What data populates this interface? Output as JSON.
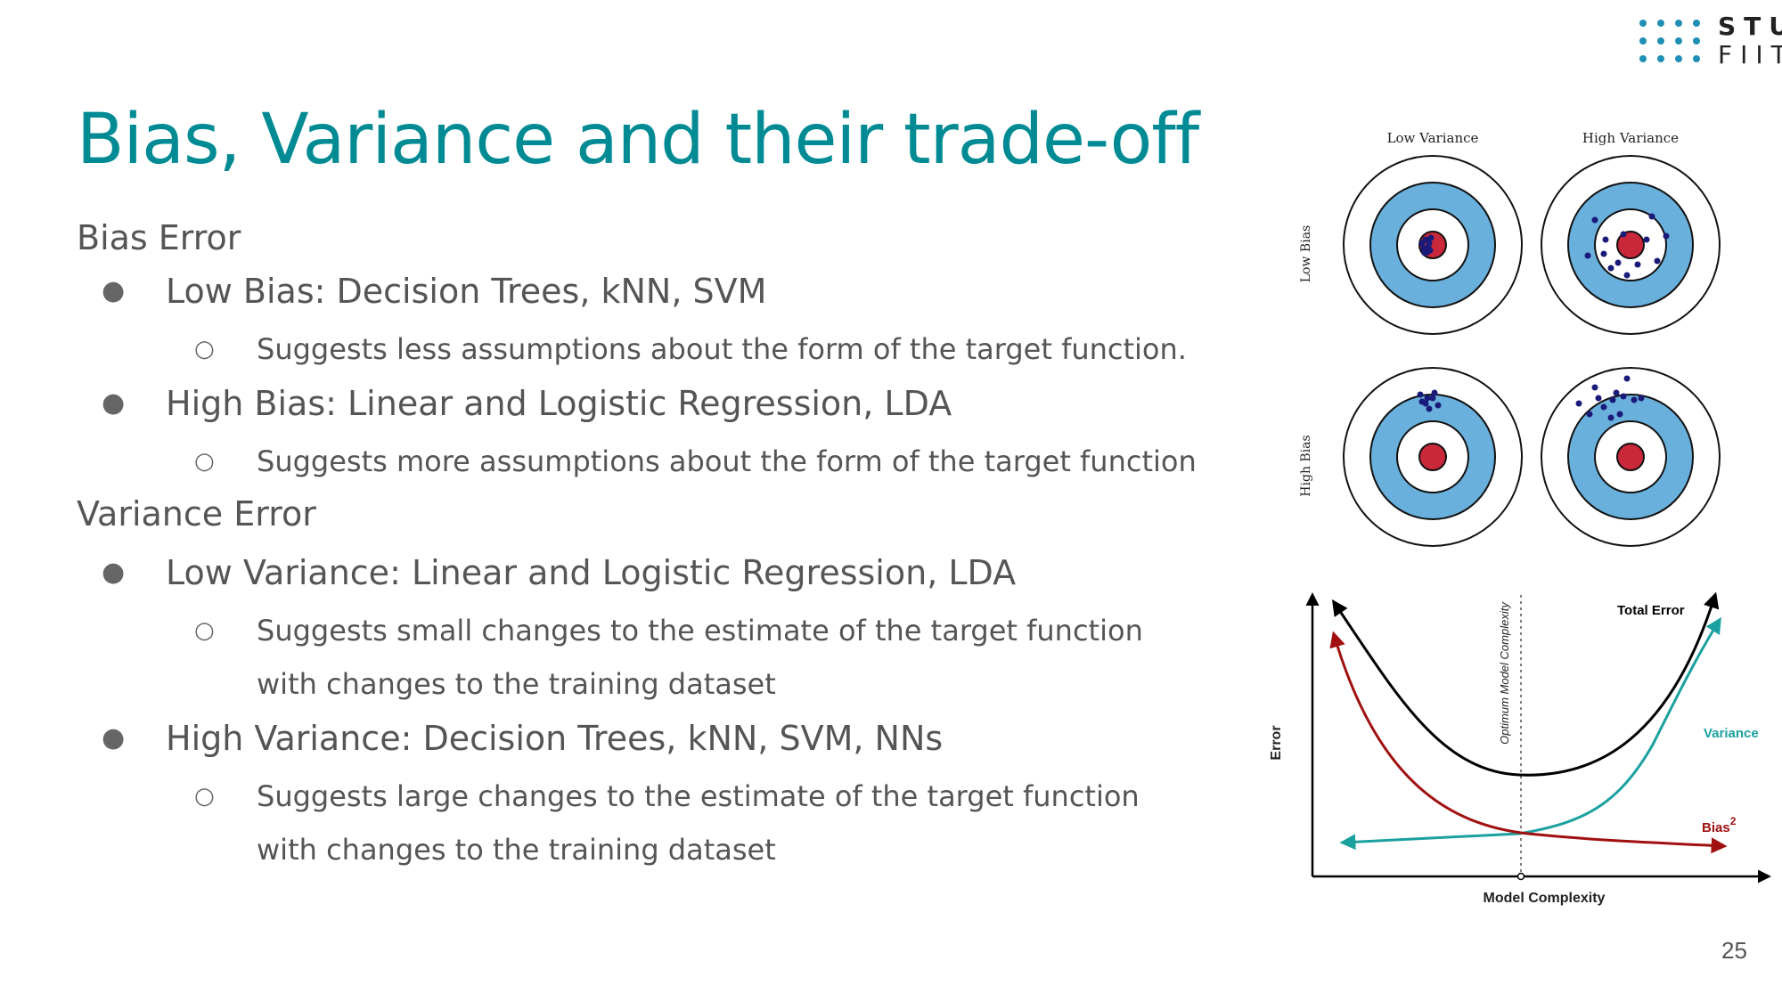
{
  "logo": {
    "line1": "STU",
    "line2": "FIIT",
    "dot_color": "#1f8fb5"
  },
  "slide": {
    "title": "Bias, Variance and their trade-off",
    "title_color": "#008b94",
    "page_number": "25"
  },
  "content": {
    "bias_heading": "Bias Error",
    "low_bias": "Low Bias: Decision Trees, kNN, SVM",
    "low_bias_note": "Suggests less assumptions about the form of the target function.",
    "high_bias": "High Bias: Linear and Logistic Regression, LDA",
    "high_bias_note": "Suggests more assumptions about the form of the target function",
    "variance_heading": "Variance Error",
    "low_variance": "Low Variance: Linear and Logistic Regression, LDA",
    "low_variance_note_1": "Suggests small changes to the estimate of the target function",
    "low_variance_note_2": "with changes to the training dataset",
    "high_variance": "High Variance: Decision Trees, kNN, SVM, NNs",
    "high_variance_note_1": "Suggests large changes to the estimate of the target function",
    "high_variance_note_2": "with changes to the training dataset"
  },
  "targets_figure": {
    "col_low_variance": "Low Variance",
    "col_high_variance": "High Variance",
    "row_low_bias": "Low Bias",
    "row_high_bias": "High Bias",
    "ring_color": "#6ab0dc",
    "bullseye_color": "#c8283a",
    "dot_color": "#1a1a7a"
  },
  "error_chart": {
    "xlabel": "Model Complexity",
    "ylabel": "Error",
    "optimum_label": "Optimum Model Complexity",
    "total_error_label": "Total Error",
    "variance_label": "Variance",
    "bias_label": "Bias",
    "bias_superscript": "2",
    "total_error_color": "#000000",
    "variance_color": "#1ba0a0",
    "bias_color": "#a01010"
  }
}
